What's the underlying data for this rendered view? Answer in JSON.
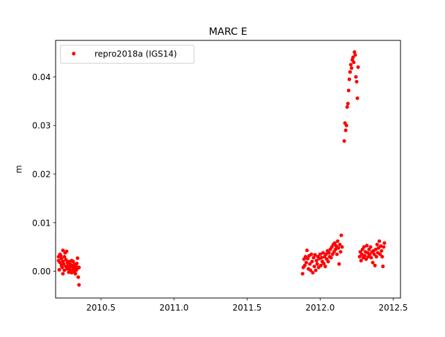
{
  "chart_data": {
    "type": "scatter",
    "title": "MARC E",
    "xlabel": "",
    "ylabel": "m",
    "xlim": [
      2010.19,
      2012.55
    ],
    "ylim": [
      -0.0055,
      0.0475
    ],
    "xticks": [
      2010.5,
      2011.0,
      2011.5,
      2012.0,
      2012.5
    ],
    "xtick_labels": [
      "2010.5",
      "2011.0",
      "2011.5",
      "2012.0",
      "2012.5"
    ],
    "yticks": [
      0.0,
      0.01,
      0.02,
      0.03,
      0.04
    ],
    "ytick_labels": [
      "0.00",
      "0.01",
      "0.02",
      "0.03",
      "0.04"
    ],
    "grid": false,
    "legend_position": "top-left",
    "series": [
      {
        "name": "repro2018a (IGS14)",
        "color": "#ff0000",
        "marker": "circle",
        "points": [
          [
            2010.21,
            0.003
          ],
          [
            2010.21,
            0.0022
          ],
          [
            2010.215,
            0.0003
          ],
          [
            2010.22,
            0.0035
          ],
          [
            2010.22,
            0.0018
          ],
          [
            2010.225,
            0.0032
          ],
          [
            2010.23,
            0.0012
          ],
          [
            2010.23,
            0.0026
          ],
          [
            2010.235,
            0.0008
          ],
          [
            2010.24,
            0.0043
          ],
          [
            2010.24,
            0.002
          ],
          [
            2010.24,
            -0.0005
          ],
          [
            2010.245,
            0.0015
          ],
          [
            2010.25,
            0.003
          ],
          [
            2010.25,
            0.0002
          ],
          [
            2010.255,
            0.0038
          ],
          [
            2010.26,
            0.001
          ],
          [
            2010.26,
            0.0024
          ],
          [
            2010.265,
            0.0041
          ],
          [
            2010.27,
            0.0018
          ],
          [
            2010.27,
            0.0005
          ],
          [
            2010.275,
            0.0012
          ],
          [
            2010.28,
            0.002
          ],
          [
            2010.28,
            -0.0002
          ],
          [
            2010.285,
            0.0008
          ],
          [
            2010.29,
            0.0015
          ],
          [
            2010.29,
            0.0002
          ],
          [
            2010.295,
            0.001
          ],
          [
            2010.3,
            0.0022
          ],
          [
            2010.3,
            -0.0003
          ],
          [
            2010.305,
            0.0012
          ],
          [
            2010.31,
            0.0005
          ],
          [
            2010.31,
            0.002
          ],
          [
            2010.315,
            0.0
          ],
          [
            2010.32,
            0.0014
          ],
          [
            2010.32,
            0.0008
          ],
          [
            2010.325,
            -0.0005
          ],
          [
            2010.33,
            0.001
          ],
          [
            2010.33,
            0.0002
          ],
          [
            2010.335,
            0.0016
          ],
          [
            2010.34,
            0.0006
          ],
          [
            2010.34,
            0.0027
          ],
          [
            2010.345,
            -0.0012
          ],
          [
            2010.35,
            0.0008
          ],
          [
            2010.35,
            -0.0028
          ],
          [
            2011.88,
            -0.0005
          ],
          [
            2011.885,
            0.0008
          ],
          [
            2011.89,
            0.0025
          ],
          [
            2011.895,
            0.0012
          ],
          [
            2011.9,
            0.003
          ],
          [
            2011.905,
            0.0018
          ],
          [
            2011.91,
            0.0043
          ],
          [
            2011.915,
            0.0026
          ],
          [
            2011.92,
            0.0005
          ],
          [
            2011.925,
            0.0032
          ],
          [
            2011.93,
            0.0015
          ],
          [
            2011.935,
            0.0002
          ],
          [
            2011.94,
            0.0035
          ],
          [
            2011.945,
            0.002
          ],
          [
            2011.95,
            -0.0003
          ],
          [
            2011.955,
            0.0028
          ],
          [
            2011.96,
            0.001
          ],
          [
            2011.965,
            0.0034
          ],
          [
            2011.97,
            0.0002
          ],
          [
            2011.975,
            0.0022
          ],
          [
            2011.98,
            0.0015
          ],
          [
            2011.985,
            0.003
          ],
          [
            2011.99,
            0.0008
          ],
          [
            2011.995,
            0.0026
          ],
          [
            2012.0,
            0.0035
          ],
          [
            2012.005,
            0.0012
          ],
          [
            2012.01,
            0.0028
          ],
          [
            2012.015,
            0.002
          ],
          [
            2012.02,
            0.0038
          ],
          [
            2012.025,
            0.0016
          ],
          [
            2012.03,
            0.003
          ],
          [
            2012.035,
            0.001
          ],
          [
            2012.04,
            0.0035
          ],
          [
            2012.045,
            0.0025
          ],
          [
            2012.05,
            0.0042
          ],
          [
            2012.055,
            0.002
          ],
          [
            2012.06,
            0.0038
          ],
          [
            2012.065,
            0.003
          ],
          [
            2012.07,
            0.0045
          ],
          [
            2012.075,
            0.0028
          ],
          [
            2012.08,
            0.005
          ],
          [
            2012.085,
            0.0035
          ],
          [
            2012.09,
            0.0055
          ],
          [
            2012.095,
            0.004
          ],
          [
            2012.1,
            0.0058
          ],
          [
            2012.105,
            0.0045
          ],
          [
            2012.11,
            0.0052
          ],
          [
            2012.115,
            0.0035
          ],
          [
            2012.12,
            0.0062
          ],
          [
            2012.125,
            0.0048
          ],
          [
            2012.13,
            0.0015
          ],
          [
            2012.135,
            0.0055
          ],
          [
            2012.14,
            0.004
          ],
          [
            2012.145,
            0.0074
          ],
          [
            2012.15,
            0.005
          ],
          [
            2012.165,
            0.0268
          ],
          [
            2012.17,
            0.0305
          ],
          [
            2012.175,
            0.029
          ],
          [
            2012.18,
            0.03
          ],
          [
            2012.185,
            0.0338
          ],
          [
            2012.19,
            0.0345
          ],
          [
            2012.195,
            0.0372
          ],
          [
            2012.2,
            0.0395
          ],
          [
            2012.205,
            0.041
          ],
          [
            2012.21,
            0.0425
          ],
          [
            2012.215,
            0.0418
          ],
          [
            2012.22,
            0.0435
          ],
          [
            2012.225,
            0.044
          ],
          [
            2012.23,
            0.043
          ],
          [
            2012.235,
            0.0451
          ],
          [
            2012.24,
            0.0445
          ],
          [
            2012.245,
            0.04
          ],
          [
            2012.25,
            0.039
          ],
          [
            2012.255,
            0.0356
          ],
          [
            2012.26,
            0.042
          ],
          [
            2012.27,
            0.003
          ],
          [
            2012.275,
            0.004
          ],
          [
            2012.28,
            0.0022
          ],
          [
            2012.285,
            0.0035
          ],
          [
            2012.29,
            0.0045
          ],
          [
            2012.295,
            0.0028
          ],
          [
            2012.3,
            0.005
          ],
          [
            2012.305,
            0.0032
          ],
          [
            2012.31,
            0.004
          ],
          [
            2012.315,
            0.0025
          ],
          [
            2012.32,
            0.0053
          ],
          [
            2012.325,
            0.0038
          ],
          [
            2012.33,
            0.003
          ],
          [
            2012.335,
            0.0045
          ],
          [
            2012.34,
            0.0035
          ],
          [
            2012.345,
            0.005
          ],
          [
            2012.35,
            0.0028
          ],
          [
            2012.355,
            0.004
          ],
          [
            2012.36,
            0.0018
          ],
          [
            2012.365,
            0.0042
          ],
          [
            2012.37,
            0.0035
          ],
          [
            2012.375,
            0.0012
          ],
          [
            2012.38,
            0.0045
          ],
          [
            2012.385,
            0.003
          ],
          [
            2012.39,
            0.0055
          ],
          [
            2012.395,
            0.0038
          ],
          [
            2012.4,
            0.0048
          ],
          [
            2012.405,
            0.0062
          ],
          [
            2012.41,
            0.0035
          ],
          [
            2012.415,
            0.0052
          ],
          [
            2012.42,
            0.0042
          ],
          [
            2012.425,
            0.003
          ],
          [
            2012.43,
            0.001
          ],
          [
            2012.435,
            0.005
          ],
          [
            2012.44,
            0.0058
          ]
        ]
      }
    ]
  }
}
